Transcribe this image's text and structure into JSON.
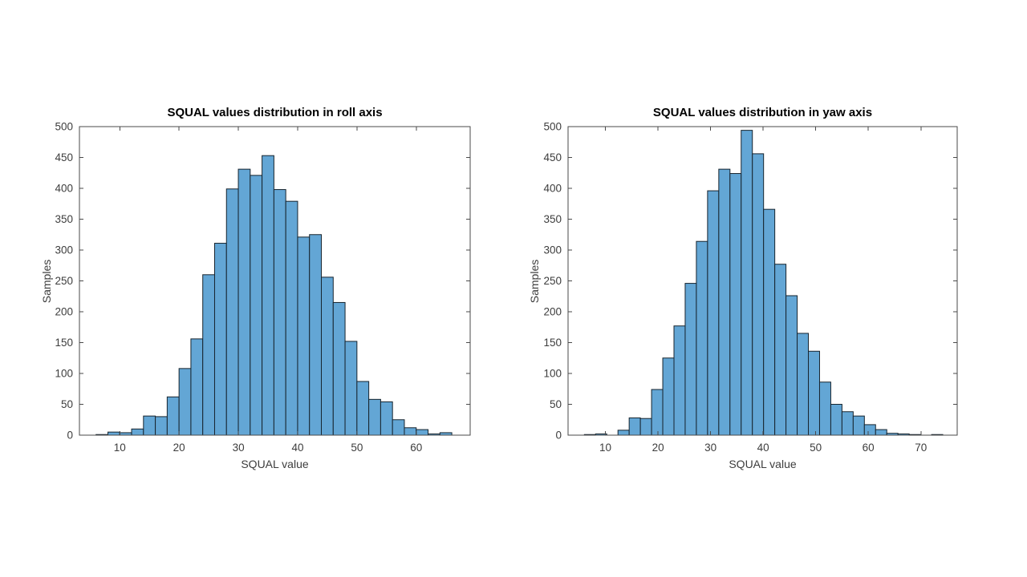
{
  "figure": {
    "background": "#ffffff",
    "kind": "matlab-style histogram figure, two subplots"
  },
  "style": {
    "bar_fill": "#63A6D5",
    "bar_edge": "#17242E",
    "axis_color": "#4a4a4a",
    "tick_text_color": "#3d3d3d",
    "title_color": "#000000"
  },
  "chart_data": [
    {
      "type": "bar",
      "subtype": "histogram",
      "title": "SQUAL values distribution in roll axis",
      "xlabel": "SQUAL value",
      "ylabel": "Samples",
      "xlim": [
        3.2,
        69.1
      ],
      "ylim": [
        0,
        500
      ],
      "x_ticks": [
        10,
        20,
        30,
        40,
        50,
        60
      ],
      "y_ticks": [
        0,
        50,
        100,
        150,
        200,
        250,
        300,
        350,
        400,
        450,
        500
      ],
      "grid": false,
      "legend": null,
      "bin_start": 6.0,
      "bin_width": 2.0,
      "counts": [
        1,
        5,
        4,
        10,
        31,
        30,
        62,
        108,
        156,
        260,
        311,
        399,
        431,
        421,
        453,
        398,
        379,
        321,
        325,
        256,
        215,
        152,
        87,
        58,
        54,
        25,
        12,
        9,
        2,
        4
      ]
    },
    {
      "type": "bar",
      "subtype": "histogram",
      "title": "SQUAL values distribution in yaw axis",
      "xlabel": "SQUAL value",
      "ylabel": "Samples",
      "xlim": [
        2.9,
        76.9
      ],
      "ylim": [
        0,
        500
      ],
      "x_ticks": [
        10,
        20,
        30,
        40,
        50,
        60,
        70
      ],
      "y_ticks": [
        0,
        50,
        100,
        150,
        200,
        250,
        300,
        350,
        400,
        450,
        500
      ],
      "grid": false,
      "legend": null,
      "bin_start": 6.0,
      "bin_width": 2.13,
      "counts": [
        1,
        2,
        0,
        8,
        28,
        27,
        74,
        125,
        177,
        246,
        314,
        396,
        431,
        424,
        494,
        456,
        366,
        277,
        226,
        165,
        136,
        86,
        50,
        38,
        31,
        17,
        9,
        3,
        2,
        1,
        0,
        1
      ]
    }
  ]
}
